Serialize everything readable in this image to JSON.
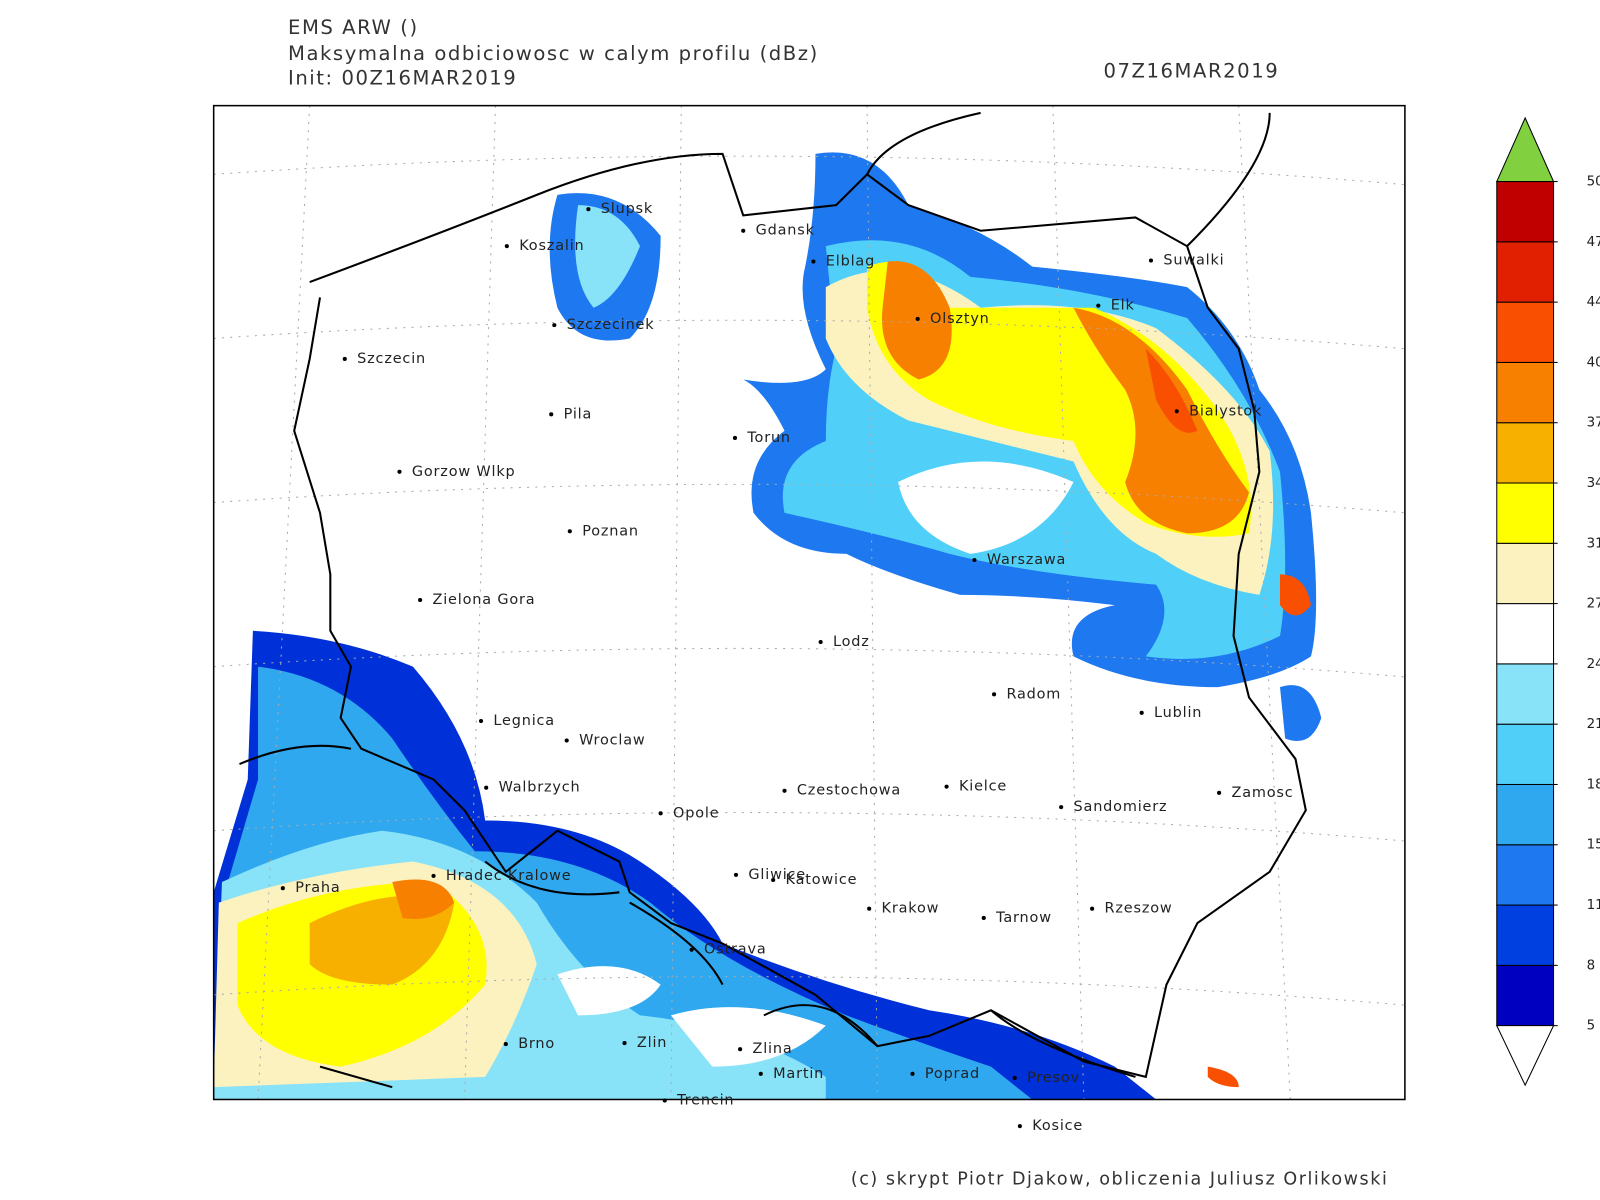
{
  "header": {
    "model": "EMS ARW ()",
    "field": "Maksymalna odbiciowosc w calym profilu (dBz)",
    "init": "Init: 00Z16MAR2019",
    "valid": "07Z16MAR2019"
  },
  "cities": [
    "Slupsk",
    "Koszalin",
    "Gdansk",
    "Elblag",
    "Suwalki",
    "Elk",
    "Olsztyn",
    "Szczecinek",
    "Szczecin",
    "Pila",
    "Torun",
    "Bialystok",
    "Gorzow Wlkp",
    "Poznan",
    "Warszawa",
    "Zielona Gora",
    "Lodz",
    "Radom",
    "Lublin",
    "Legnica",
    "Wroclaw",
    "Walbrzych",
    "Czestochowa",
    "Kielce",
    "Opole",
    "Sandomierz",
    "Zamosc",
    "Praha",
    "Hradec Kralowe",
    "Gliwice",
    "Katowice",
    "Krakow",
    "Tarnow",
    "Rzeszow",
    "Ostrava",
    "Brno",
    "Zlin",
    "Zlina",
    "Martin",
    "Poprad",
    "Presov",
    "Trencin",
    "Kosice"
  ],
  "colorbar": {
    "levels": [
      5,
      8,
      11,
      15,
      18,
      21,
      24,
      27,
      31,
      34,
      37,
      40,
      44,
      47,
      50
    ],
    "colors": [
      "#0000c0",
      "#0040e0",
      "#1e78f0",
      "#30a8f0",
      "#50d0f8",
      "#88e2f8",
      "#ffffff",
      "#fbf2c0",
      "#ffff00",
      "#f8b000",
      "#f88000",
      "#f85000",
      "#e02000",
      "#c00000"
    ],
    "over_color": "#80d040",
    "under_color": "#ffffff"
  },
  "credit": "(c) skrypt Piotr Djakow, obliczenia Juliusz Orlikowski"
}
